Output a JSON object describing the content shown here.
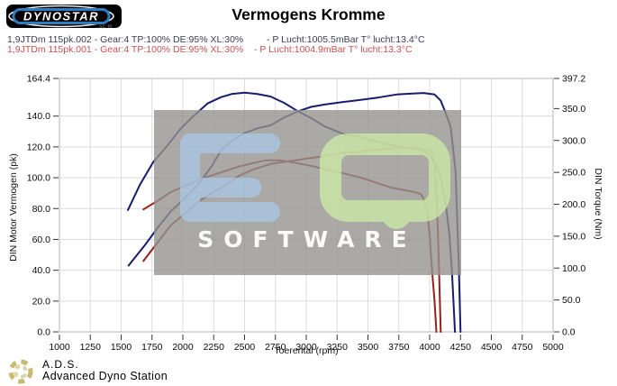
{
  "header": {
    "logo_text": "DYNOSTAR",
    "logo_sub": "..sc m",
    "title": "Vermogens Kromme"
  },
  "legend": {
    "runs": [
      {
        "name": "1,9JTDm 115pk.002 - Gear:4 TP:100% DE:95% XL:30%",
        "conditions": "- P Lucht:1005.5mBar T° lucht:13.4°C",
        "color": "#3c3c52"
      },
      {
        "name": "1,9JTDm 115pk.001 - Gear:4 TP:100% DE:95% XL:30%",
        "conditions": "- P Lucht:1004.9mBar T° lucht:13.3°C",
        "color": "#c85252"
      }
    ]
  },
  "watermark": {
    "letters": [
      "E",
      "Q"
    ],
    "label": "SOFTWARE",
    "colors": {
      "box": "#95938f",
      "e": "#a9c9e9",
      "q": "#cdeaa6",
      "text": "#ffffff"
    }
  },
  "footer": {
    "abbr": "A.D.S.",
    "name": "Advanced Dyno Station"
  },
  "chart_data": {
    "type": "line",
    "title": "Vermogens Kromme",
    "xlabel": "Toerental (rpm)",
    "ylabel_left": "DIN Motor Vermogen (pk)",
    "ylabel_right": "DIN Torque (Nm)",
    "xlim": [
      1000,
      5000
    ],
    "ylim_left": [
      0,
      164.4
    ],
    "ylim_right": [
      0,
      397.2
    ],
    "grid": true,
    "x_ticks": [
      "1000",
      "1250",
      "1500",
      "1750",
      "2000",
      "2250",
      "2500",
      "2750",
      "3000",
      "3250",
      "3500",
      "3750",
      "4000",
      "4250",
      "4500",
      "4750",
      "5000"
    ],
    "y_left_ticks": [
      "164.4",
      "140.0",
      "120.0",
      "100.0",
      "80.0",
      "60.0",
      "40.0",
      "20.0",
      "0.0"
    ],
    "y_right_ticks": [
      "397.2",
      "350.0",
      "300.0",
      "250.0",
      "200.0",
      "150.0",
      "100.0",
      "50.0",
      "0.0"
    ],
    "series": [
      {
        "name": "115pk.002 vermogen (pk)",
        "axis": "left",
        "unit": "pk",
        "color": "#171c6b",
        "points": [
          [
            1560,
            43
          ],
          [
            1690,
            56
          ],
          [
            1800,
            68
          ],
          [
            1900,
            78
          ],
          [
            2020,
            87
          ],
          [
            2120,
            95
          ],
          [
            2230,
            107
          ],
          [
            2320,
            119
          ],
          [
            2420,
            125
          ],
          [
            2500,
            129
          ],
          [
            2600,
            132
          ],
          [
            2710,
            134
          ],
          [
            2820,
            139
          ],
          [
            2930,
            143
          ],
          [
            3040,
            146
          ],
          [
            3150,
            147.5
          ],
          [
            3290,
            149
          ],
          [
            3440,
            150.5
          ],
          [
            3580,
            152
          ],
          [
            3730,
            154
          ],
          [
            3840,
            154.5
          ],
          [
            3950,
            155
          ],
          [
            4040,
            154
          ],
          [
            4090,
            150
          ],
          [
            4130,
            142
          ],
          [
            4170,
            133
          ],
          [
            4190,
            119
          ],
          [
            4210,
            104
          ],
          [
            4220,
            81
          ],
          [
            4235,
            46
          ],
          [
            4250,
            0
          ]
        ]
      },
      {
        "name": "115pk.002 koppel (Nm)",
        "axis": "right",
        "unit": "Nm",
        "color": "#171c6b",
        "points": [
          [
            1555,
            191
          ],
          [
            1650,
            230
          ],
          [
            1760,
            266
          ],
          [
            1870,
            291
          ],
          [
            1980,
            318
          ],
          [
            2090,
            339
          ],
          [
            2200,
            358
          ],
          [
            2310,
            368
          ],
          [
            2400,
            373
          ],
          [
            2500,
            375
          ],
          [
            2600,
            373
          ],
          [
            2710,
            369
          ],
          [
            2820,
            359
          ],
          [
            2930,
            346
          ],
          [
            3040,
            335
          ],
          [
            3150,
            322
          ],
          [
            3290,
            311
          ],
          [
            3440,
            305
          ],
          [
            3580,
            298
          ],
          [
            3730,
            291
          ],
          [
            3840,
            288
          ],
          [
            3930,
            286
          ],
          [
            4000,
            277
          ],
          [
            4060,
            259
          ],
          [
            4095,
            238
          ],
          [
            4130,
            202
          ],
          [
            4160,
            153
          ],
          [
            4180,
            96
          ],
          [
            4195,
            40
          ],
          [
            4205,
            0
          ]
        ]
      },
      {
        "name": "115pk.001 vermogen (pk)",
        "axis": "left",
        "unit": "pk",
        "color": "#96201c",
        "points": [
          [
            1680,
            46
          ],
          [
            1800,
            58.5
          ],
          [
            1900,
            69
          ],
          [
            2020,
            77
          ],
          [
            2120,
            84
          ],
          [
            2230,
            90
          ],
          [
            2340,
            95
          ],
          [
            2450,
            101
          ],
          [
            2560,
            105
          ],
          [
            2710,
            109
          ],
          [
            2850,
            110.6
          ],
          [
            3000,
            112.4
          ],
          [
            3150,
            114
          ],
          [
            3290,
            116
          ],
          [
            3440,
            117
          ],
          [
            3580,
            118.3
          ],
          [
            3690,
            118.9
          ],
          [
            3800,
            119.4
          ],
          [
            3880,
            119.4
          ],
          [
            3950,
            118.3
          ],
          [
            4000,
            117.7
          ],
          [
            4020,
            116
          ],
          [
            4040,
            110
          ],
          [
            4050,
            98
          ],
          [
            4060,
            81
          ],
          [
            4070,
            57
          ],
          [
            4080,
            28
          ],
          [
            4090,
            0
          ]
        ]
      },
      {
        "name": "115pk.001 koppel (Nm)",
        "axis": "right",
        "unit": "Nm",
        "color": "#96201c",
        "points": [
          [
            1680,
            192
          ],
          [
            1800,
            206
          ],
          [
            1900,
            219
          ],
          [
            2020,
            229
          ],
          [
            2120,
            237.5
          ],
          [
            2230,
            245
          ],
          [
            2340,
            252
          ],
          [
            2450,
            259
          ],
          [
            2560,
            264
          ],
          [
            2670,
            269
          ],
          [
            2780,
            269
          ],
          [
            2850,
            267
          ],
          [
            2960,
            263
          ],
          [
            3070,
            259
          ],
          [
            3180,
            253
          ],
          [
            3290,
            249
          ],
          [
            3440,
            242
          ],
          [
            3580,
            233
          ],
          [
            3690,
            226
          ],
          [
            3800,
            222
          ],
          [
            3880,
            219
          ],
          [
            3930,
            216
          ],
          [
            3950,
            209
          ],
          [
            3980,
            188
          ],
          [
            4000,
            153
          ],
          [
            4020,
            96
          ],
          [
            4040,
            47
          ],
          [
            4055,
            0
          ]
        ]
      }
    ]
  }
}
